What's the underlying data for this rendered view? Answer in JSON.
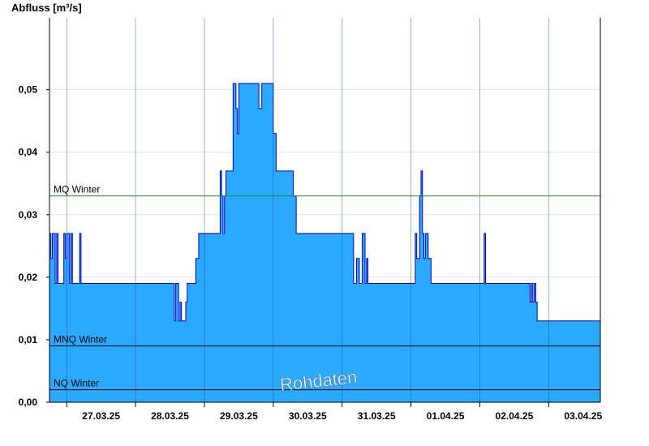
{
  "chart_data": {
    "type": "area",
    "title": "",
    "ylabel": "Abfluss [m³/s]",
    "xlabel": "",
    "x_unit": "days",
    "xlim": [
      "26.03.25 18:00",
      "03.04.25 18:00"
    ],
    "ylim": [
      0,
      0.0615
    ],
    "yticks": [
      "0,00",
      "0,01",
      "0,02",
      "0,03",
      "0,04",
      "0,05"
    ],
    "ytick_values": [
      0,
      0.01,
      0.02,
      0.03,
      0.04,
      0.05
    ],
    "xtick_labels": [
      "27.03.25",
      "28.03.25",
      "29.03.25",
      "30.03.25",
      "31.03.25",
      "01.04.25",
      "02.04.25",
      "03.04.25"
    ],
    "grid": true,
    "fill_color": "#29a9ff",
    "line_color": "#0000c8",
    "reference_lines": [
      {
        "name": "MQ Winter",
        "value": 0.033,
        "color": "#1b8a1b"
      },
      {
        "name": "MNQ Winter",
        "value": 0.009,
        "color": "#000000"
      },
      {
        "name": "NQ Winter",
        "value": 0.002,
        "color": "#000000"
      }
    ],
    "watermark": "Rohdaten",
    "series": [
      {
        "x": [
          "26.03.25 18:00",
          "26.03.25 18:30",
          "26.03.25 19:00",
          "26.03.25 20:00",
          "26.03.25 20:30",
          "26.03.25 21:00",
          "26.03.25 23:00",
          "26.03.25 23:30",
          "27.03.25 00:00",
          "27.03.25 01:00",
          "27.03.25 01:30",
          "27.03.25 02:00",
          "27.03.25 04:00",
          "27.03.25 04:30",
          "27.03.25 05:00",
          "28.03.25 13:00",
          "28.03.25 13:30",
          "28.03.25 14:00",
          "28.03.25 15:00",
          "28.03.25 15:30",
          "28.03.25 16:00",
          "28.03.25 17:00",
          "28.03.25 17:30",
          "28.03.25 18:00",
          "28.03.25 20:00",
          "28.03.25 21:00",
          "28.03.25 22:00",
          "29.03.25 00:00",
          "29.03.25 05:00",
          "29.03.25 05:30",
          "29.03.25 06:00",
          "29.03.25 06:30",
          "29.03.25 07:00",
          "29.03.25 07:30",
          "29.03.25 09:00",
          "29.03.25 10:00",
          "29.03.25 11:00",
          "29.03.25 11:30",
          "29.03.25 12:00",
          "29.03.25 13:00",
          "29.03.25 14:00",
          "29.03.25 15:00",
          "29.03.25 16:00",
          "29.03.25 17:00",
          "29.03.25 18:00",
          "29.03.25 19:00",
          "29.03.25 20:00",
          "29.03.25 21:00",
          "29.03.25 23:00",
          "30.03.25 00:00",
          "30.03.25 01:00",
          "30.03.25 04:00",
          "30.03.25 07:00",
          "30.03.25 08:00",
          "30.03.25 12:00",
          "30.03.25 18:00",
          "31.03.25 00:00",
          "31.03.25 03:00",
          "31.03.25 04:00",
          "31.03.25 05:00",
          "31.03.25 06:00",
          "31.03.25 07:00",
          "31.03.25 08:00",
          "31.03.25 08:30",
          "31.03.25 09:00",
          "01.04.25 00:00",
          "01.04.25 01:00",
          "01.04.25 01:30",
          "01.04.25 02:00",
          "01.04.25 03:00",
          "01.04.25 03:30",
          "01.04.25 04:00",
          "01.04.25 04:30",
          "01.04.25 05:00",
          "01.04.25 06:00",
          "01.04.25 07:00",
          "01.04.25 08:00",
          "02.04.25 00:00",
          "02.04.25 01:00",
          "02.04.25 01:30",
          "02.04.25 02:00",
          "02.04.25 16:00",
          "02.04.25 17:00",
          "02.04.25 17:30",
          "02.04.25 18:00",
          "02.04.25 18:30",
          "02.04.25 19:00",
          "02.04.25 19:30",
          "02.04.25 20:00",
          "02.04.25 21:00",
          "03.04.25 18:00"
        ],
        "y": [
          0.027,
          0.023,
          0.027,
          0.019,
          0.027,
          0.019,
          0.027,
          0.023,
          0.027,
          0.019,
          0.027,
          0.019,
          0.019,
          0.027,
          0.019,
          0.019,
          0.013,
          0.019,
          0.013,
          0.016,
          0.013,
          0.013,
          0.016,
          0.019,
          0.019,
          0.023,
          0.027,
          0.027,
          0.027,
          0.037,
          0.033,
          0.027,
          0.033,
          0.037,
          0.037,
          0.051,
          0.047,
          0.043,
          0.051,
          0.051,
          0.051,
          0.051,
          0.051,
          0.051,
          0.051,
          0.047,
          0.051,
          0.051,
          0.051,
          0.043,
          0.037,
          0.037,
          0.033,
          0.027,
          0.027,
          0.027,
          0.027,
          0.027,
          0.019,
          0.023,
          0.019,
          0.027,
          0.019,
          0.023,
          0.019,
          0.019,
          0.019,
          0.027,
          0.023,
          0.033,
          0.037,
          0.027,
          0.023,
          0.027,
          0.023,
          0.019,
          0.019,
          0.019,
          0.019,
          0.027,
          0.019,
          0.019,
          0.019,
          0.016,
          0.019,
          0.016,
          0.019,
          0.016,
          0.013,
          0.013,
          0.013
        ]
      }
    ]
  }
}
